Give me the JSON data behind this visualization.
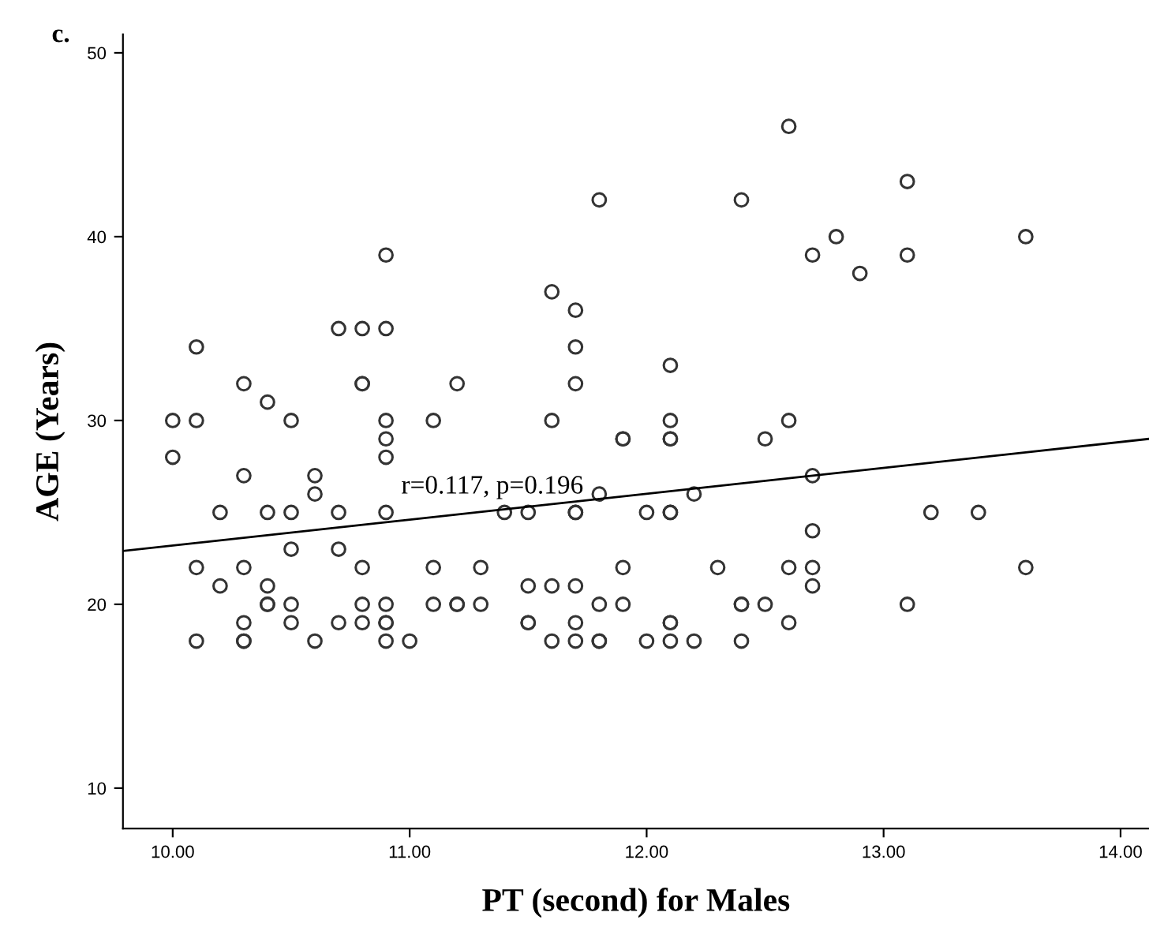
{
  "chart_data": {
    "type": "scatter",
    "xlabel": "PT (second) for Males",
    "ylabel": "AGE (Years)",
    "annotations": [
      "c.",
      "r=0.117, p=0.196"
    ],
    "xlim": [
      9.79,
      14.12
    ],
    "ylim": [
      7.8,
      51
    ],
    "xticks": [
      {
        "value": 10,
        "label": "10.00"
      },
      {
        "value": 11,
        "label": "11.00"
      },
      {
        "value": 12,
        "label": "12.00"
      },
      {
        "value": 13,
        "label": "13.00"
      },
      {
        "value": 14,
        "label": "14.00"
      }
    ],
    "yticks": [
      10,
      20,
      30,
      40,
      50
    ],
    "grid": false,
    "series": [
      {
        "color": "#333333",
        "marker": "circle",
        "x": [
          10.0,
          10.0,
          10.1,
          10.1,
          10.1,
          10.1,
          10.2,
          10.2,
          10.3,
          10.3,
          10.3,
          10.3,
          10.3,
          10.3,
          10.4,
          10.4,
          10.4,
          10.4,
          10.4,
          10.5,
          10.5,
          10.5,
          10.5,
          10.5,
          10.6,
          10.6,
          10.6,
          10.7,
          10.7,
          10.7,
          10.7,
          10.8,
          10.8,
          10.8,
          10.8,
          10.8,
          10.8,
          10.9,
          10.9,
          10.9,
          10.9,
          10.9,
          10.9,
          10.9,
          10.9,
          10.9,
          10.9,
          11.0,
          11.1,
          11.1,
          11.1,
          11.2,
          11.2,
          11.2,
          11.3,
          11.3,
          11.4,
          11.5,
          11.5,
          11.5,
          11.5,
          11.6,
          11.6,
          11.6,
          11.6,
          11.8,
          11.7,
          11.7,
          11.7,
          11.7,
          11.7,
          11.7,
          11.7,
          11.7,
          11.8,
          11.8,
          11.8,
          11.8,
          11.9,
          11.9,
          11.9,
          11.9,
          12.0,
          12.0,
          12.1,
          12.1,
          12.1,
          12.1,
          12.1,
          12.1,
          12.1,
          12.1,
          12.1,
          12.2,
          12.2,
          12.4,
          12.3,
          12.4,
          12.4,
          12.4,
          12.5,
          12.5,
          12.6,
          12.6,
          12.6,
          12.6,
          12.7,
          12.7,
          12.7,
          12.7,
          12.7,
          12.8,
          12.9,
          13.1,
          13.1,
          13.1,
          13.2,
          13.4,
          13.6,
          13.6
        ],
        "values": [
          30,
          28,
          34,
          30,
          22,
          18,
          25,
          21,
          32,
          27,
          22,
          19,
          18,
          18,
          31,
          25,
          21,
          20,
          20,
          30,
          25,
          23,
          20,
          19,
          27,
          26,
          18,
          35,
          25,
          23,
          19,
          35,
          32,
          32,
          22,
          20,
          19,
          39,
          35,
          30,
          29,
          28,
          25,
          20,
          19,
          19,
          18,
          18,
          30,
          22,
          20,
          32,
          20,
          20,
          22,
          20,
          25,
          25,
          21,
          19,
          19,
          37,
          30,
          21,
          18,
          42,
          36,
          34,
          32,
          25,
          25,
          21,
          19,
          18,
          26,
          20,
          18,
          18,
          29,
          29,
          22,
          20,
          25,
          18,
          33,
          30,
          29,
          29,
          25,
          25,
          19,
          19,
          18,
          26,
          18,
          42,
          22,
          20,
          20,
          18,
          29,
          20,
          46,
          30,
          22,
          19,
          39,
          27,
          24,
          22,
          21,
          40,
          38,
          43,
          39,
          20,
          25,
          25,
          40,
          22
        ]
      },
      {
        "type": "line",
        "color": "#000000",
        "x": [
          9.79,
          14.12
        ],
        "values": [
          22.9,
          29.0
        ]
      }
    ]
  }
}
